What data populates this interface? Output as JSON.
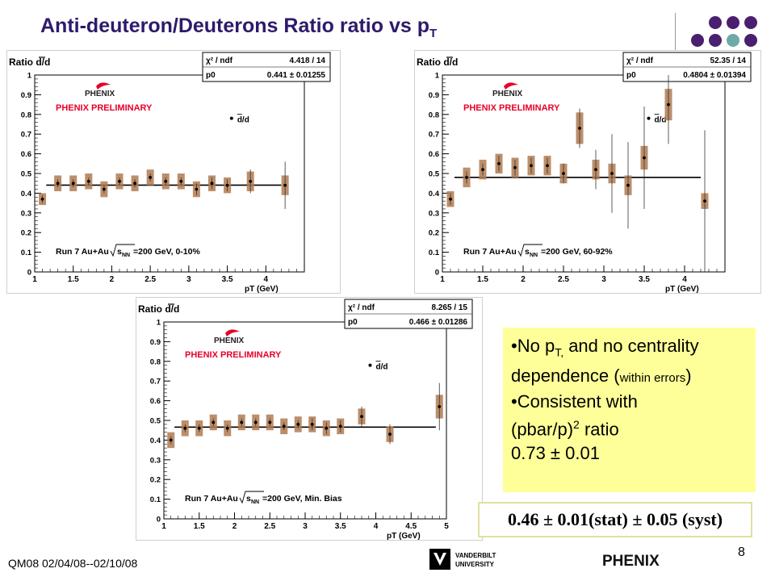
{
  "slide": {
    "title_main": "Anti-deuteron/Deuterons Ratio ratio vs p",
    "title_sub": "T",
    "footer_left": "QM08  02/04/08--02/10/08",
    "page_number": "8",
    "footer_logo_left": "VANDERBILT UNIVERSITY",
    "footer_logo_left_line1": "VANDERBILT",
    "footer_logo_left_line2": "UNIVERSITY",
    "footer_logo_right": "PHENIX",
    "dot_colors": [
      "#4b1f70",
      "#4b1f70",
      "#4b1f70",
      "#4b1f70",
      "#4b1f70",
      "#6fa9a8",
      "#4b1f70",
      "#6fa9a8",
      "#6fa9a8",
      "#d8d400"
    ],
    "accent_title_color": "#2e1a6b",
    "box_color": "#b07a50",
    "phenix_red": "#e8002a"
  },
  "note": {
    "line1_a": "No p",
    "line1_sub": "T,",
    "line1_b": " and no centrality",
    "line2_a": "dependence (",
    "line2_small": "within errors",
    "line2_b": ")",
    "line3": "Consistent with",
    "line4_a": "(pbar/p)",
    "line4_sup": "2",
    "line4_b": " ratio",
    "line5": "0.73 ± 0.01"
  },
  "result": {
    "text": "0.46 ± 0.01(stat) ± 0.05 (syst)"
  },
  "chart_data": [
    {
      "type": "scatter",
      "ylabel": "Ratio d/d",
      "xlabel": "p_T (GeV)",
      "xlim": [
        1,
        4.5
      ],
      "ylim": [
        0,
        1
      ],
      "xticks": [
        1,
        1.5,
        2,
        2.5,
        3,
        3.5,
        4
      ],
      "yticks": [
        0,
        0.1,
        0.2,
        0.3,
        0.4,
        0.5,
        0.6,
        0.7,
        0.8,
        0.9,
        1
      ],
      "fit": {
        "chi2_label": "χ² / ndf",
        "chi2_value": "4.418 / 14",
        "p0_label": "p0",
        "p0_value": "0.441 ± 0.01255",
        "value": 0.441
      },
      "preliminary": "PHENIX PRELIMINARY",
      "logo": "PHENIX",
      "legend": "d/d",
      "run_label": "Run 7 Au+Au",
      "run_label_tail": "=200 GeV, 0-10%",
      "sqrt_symbol": "s",
      "sqrt_sub": "NN",
      "points": [
        {
          "x": 1.1,
          "y": 0.37,
          "stat": 0.02,
          "syst": 0.03
        },
        {
          "x": 1.3,
          "y": 0.45,
          "stat": 0.02,
          "syst": 0.04
        },
        {
          "x": 1.5,
          "y": 0.45,
          "stat": 0.02,
          "syst": 0.04
        },
        {
          "x": 1.7,
          "y": 0.46,
          "stat": 0.02,
          "syst": 0.04
        },
        {
          "x": 1.9,
          "y": 0.42,
          "stat": 0.02,
          "syst": 0.04
        },
        {
          "x": 2.1,
          "y": 0.46,
          "stat": 0.02,
          "syst": 0.04
        },
        {
          "x": 2.3,
          "y": 0.45,
          "stat": 0.02,
          "syst": 0.04
        },
        {
          "x": 2.5,
          "y": 0.48,
          "stat": 0.02,
          "syst": 0.04
        },
        {
          "x": 2.7,
          "y": 0.46,
          "stat": 0.02,
          "syst": 0.04
        },
        {
          "x": 2.9,
          "y": 0.46,
          "stat": 0.02,
          "syst": 0.04
        },
        {
          "x": 3.1,
          "y": 0.42,
          "stat": 0.03,
          "syst": 0.04
        },
        {
          "x": 3.3,
          "y": 0.45,
          "stat": 0.03,
          "syst": 0.04
        },
        {
          "x": 3.5,
          "y": 0.44,
          "stat": 0.03,
          "syst": 0.04
        },
        {
          "x": 3.8,
          "y": 0.46,
          "stat": 0.06,
          "syst": 0.05
        },
        {
          "x": 4.25,
          "y": 0.44,
          "stat": 0.12,
          "syst": 0.05
        }
      ]
    },
    {
      "type": "scatter",
      "ylabel": "Ratio d/d",
      "xlabel": "p_T (GeV)",
      "xlim": [
        1,
        4.5
      ],
      "ylim": [
        0,
        1
      ],
      "xticks": [
        1,
        1.5,
        2,
        2.5,
        3,
        3.5,
        4
      ],
      "yticks": [
        0,
        0.1,
        0.2,
        0.3,
        0.4,
        0.5,
        0.6,
        0.7,
        0.8,
        0.9,
        1
      ],
      "fit": {
        "chi2_label": "χ² / ndf",
        "chi2_value": "52.35 / 14",
        "p0_label": "p0",
        "p0_value": "0.4804 ± 0.01394",
        "value": 0.4804
      },
      "preliminary": "PHENIX PRELIMINARY",
      "logo": "PHENIX",
      "legend": "d/d",
      "run_label": "Run 7 Au+Au",
      "run_label_tail": "=200 GeV, 60-92%",
      "sqrt_symbol": "s",
      "sqrt_sub": "NN",
      "points": [
        {
          "x": 1.1,
          "y": 0.37,
          "stat": 0.03,
          "syst": 0.04
        },
        {
          "x": 1.3,
          "y": 0.48,
          "stat": 0.03,
          "syst": 0.05
        },
        {
          "x": 1.5,
          "y": 0.52,
          "stat": 0.03,
          "syst": 0.05
        },
        {
          "x": 1.7,
          "y": 0.55,
          "stat": 0.04,
          "syst": 0.05
        },
        {
          "x": 1.9,
          "y": 0.53,
          "stat": 0.04,
          "syst": 0.05
        },
        {
          "x": 2.1,
          "y": 0.54,
          "stat": 0.04,
          "syst": 0.05
        },
        {
          "x": 2.3,
          "y": 0.54,
          "stat": 0.04,
          "syst": 0.05
        },
        {
          "x": 2.5,
          "y": 0.5,
          "stat": 0.05,
          "syst": 0.05
        },
        {
          "x": 2.7,
          "y": 0.73,
          "stat": 0.1,
          "syst": 0.08
        },
        {
          "x": 2.9,
          "y": 0.52,
          "stat": 0.1,
          "syst": 0.05
        },
        {
          "x": 3.1,
          "y": 0.5,
          "stat": 0.2,
          "syst": 0.05
        },
        {
          "x": 3.3,
          "y": 0.44,
          "stat": 0.22,
          "syst": 0.05
        },
        {
          "x": 3.5,
          "y": 0.58,
          "stat": 0.26,
          "syst": 0.06
        },
        {
          "x": 3.8,
          "y": 0.85,
          "stat": 0.2,
          "syst": 0.08
        },
        {
          "x": 4.25,
          "y": 0.36,
          "stat": 0.36,
          "syst": 0.04
        }
      ]
    },
    {
      "type": "scatter",
      "ylabel": "Ratio d/d",
      "xlabel": "p_T (GeV)",
      "xlim": [
        1,
        5
      ],
      "ylim": [
        0,
        1
      ],
      "xticks": [
        1,
        1.5,
        2,
        2.5,
        3,
        3.5,
        4,
        4.5,
        5
      ],
      "yticks": [
        0,
        0.1,
        0.2,
        0.3,
        0.4,
        0.5,
        0.6,
        0.7,
        0.8,
        0.9,
        1
      ],
      "fit": {
        "chi2_label": "χ² / ndf",
        "chi2_value": "8.265 / 15",
        "p0_label": "p0",
        "p0_value": "0.466 ± 0.01286",
        "value": 0.466
      },
      "preliminary": "PHENIX PRELIMINARY",
      "logo": "PHENIX",
      "legend": "d/d",
      "run_label": "Run 7 Au+Au",
      "run_label_tail": "=200 GeV, Min. Bias",
      "sqrt_symbol": "s",
      "sqrt_sub": "NN",
      "points": [
        {
          "x": 1.1,
          "y": 0.4,
          "stat": 0.02,
          "syst": 0.04
        },
        {
          "x": 1.3,
          "y": 0.46,
          "stat": 0.02,
          "syst": 0.04
        },
        {
          "x": 1.5,
          "y": 0.46,
          "stat": 0.02,
          "syst": 0.04
        },
        {
          "x": 1.7,
          "y": 0.49,
          "stat": 0.02,
          "syst": 0.04
        },
        {
          "x": 1.9,
          "y": 0.46,
          "stat": 0.02,
          "syst": 0.04
        },
        {
          "x": 2.1,
          "y": 0.49,
          "stat": 0.02,
          "syst": 0.04
        },
        {
          "x": 2.3,
          "y": 0.49,
          "stat": 0.02,
          "syst": 0.04
        },
        {
          "x": 2.5,
          "y": 0.49,
          "stat": 0.02,
          "syst": 0.04
        },
        {
          "x": 2.7,
          "y": 0.47,
          "stat": 0.02,
          "syst": 0.04
        },
        {
          "x": 2.9,
          "y": 0.48,
          "stat": 0.02,
          "syst": 0.04
        },
        {
          "x": 3.1,
          "y": 0.48,
          "stat": 0.03,
          "syst": 0.04
        },
        {
          "x": 3.3,
          "y": 0.46,
          "stat": 0.03,
          "syst": 0.04
        },
        {
          "x": 3.5,
          "y": 0.47,
          "stat": 0.03,
          "syst": 0.04
        },
        {
          "x": 3.8,
          "y": 0.52,
          "stat": 0.05,
          "syst": 0.04
        },
        {
          "x": 4.2,
          "y": 0.43,
          "stat": 0.05,
          "syst": 0.04
        },
        {
          "x": 4.9,
          "y": 0.57,
          "stat": 0.12,
          "syst": 0.06
        }
      ]
    }
  ]
}
